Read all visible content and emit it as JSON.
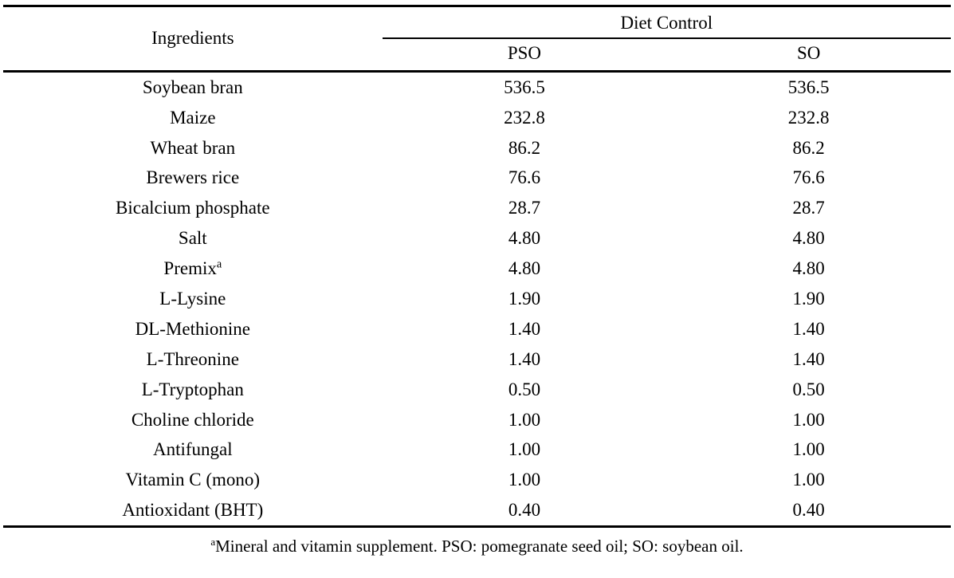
{
  "table": {
    "header": {
      "ingredients": "Ingredients",
      "diet_control": "Diet Control",
      "pso": "PSO",
      "so": "SO"
    },
    "rows": [
      {
        "ingredient": "Soybean bran",
        "pso": "536.5",
        "so": "536.5"
      },
      {
        "ingredient": "Maize",
        "pso": "232.8",
        "so": "232.8"
      },
      {
        "ingredient": "Wheat bran",
        "pso": "86.2",
        "so": "86.2"
      },
      {
        "ingredient": "Brewers rice",
        "pso": "76.6",
        "so": "76.6"
      },
      {
        "ingredient": "Bicalcium phosphate",
        "pso": "28.7",
        "so": "28.7"
      },
      {
        "ingredient": "Salt",
        "pso": "4.80",
        "so": "4.80"
      },
      {
        "ingredient": "Premix",
        "sup": "a",
        "pso": "4.80",
        "so": "4.80"
      },
      {
        "ingredient": "L-Lysine",
        "pso": "1.90",
        "so": "1.90"
      },
      {
        "ingredient": "DL-Methionine",
        "pso": "1.40",
        "so": "1.40"
      },
      {
        "ingredient": "L-Threonine",
        "pso": "1.40",
        "so": "1.40"
      },
      {
        "ingredient": "L-Tryptophan",
        "pso": "0.50",
        "so": "0.50"
      },
      {
        "ingredient": "Choline chloride",
        "pso": "1.00",
        "so": "1.00"
      },
      {
        "ingredient": "Antifungal",
        "pso": "1.00",
        "so": "1.00"
      },
      {
        "ingredient": "Vitamin C (mono)",
        "pso": "1.00",
        "so": "1.00"
      },
      {
        "ingredient": "Antioxidant (BHT)",
        "pso": "0.40",
        "so": "0.40"
      }
    ]
  },
  "footnote": {
    "marker": "a",
    "text": "Mineral and vitamin supplement. PSO: pomegranate seed oil; SO: soybean oil."
  }
}
